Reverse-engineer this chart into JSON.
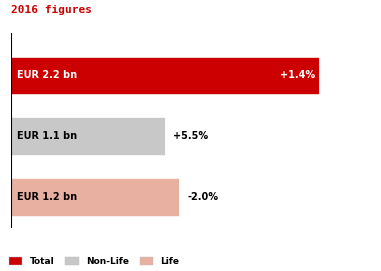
{
  "title": "2016 figures",
  "title_color": "#cc0000",
  "title_fontsize": 8,
  "bars": [
    {
      "label": "EUR 2.2 bn",
      "value": 2.2,
      "pct": "+1.4%",
      "color": "#cc0000",
      "label_color": "#ffffff",
      "pct_color": "#ffffff",
      "pct_inside": true
    },
    {
      "label": "EUR 1.1 bn",
      "value": 1.1,
      "pct": "+5.5%",
      "color": "#c8c8c8",
      "label_color": "#000000",
      "pct_color": "#000000",
      "pct_inside": false
    },
    {
      "label": "EUR 1.2 bn",
      "value": 1.2,
      "pct": "-2.0%",
      "color": "#e8b0a0",
      "label_color": "#000000",
      "pct_color": "#000000",
      "pct_inside": false
    }
  ],
  "max_value": 2.55,
  "bar_height": 0.58,
  "bar_gap": 0.42,
  "legend": [
    {
      "label": "Total",
      "color": "#cc0000"
    },
    {
      "label": "Non-Life",
      "color": "#c8c8c8"
    },
    {
      "label": "Life",
      "color": "#e8b0a0"
    }
  ],
  "bg_color": "#ffffff",
  "label_fontsize": 7,
  "pct_fontsize": 7
}
